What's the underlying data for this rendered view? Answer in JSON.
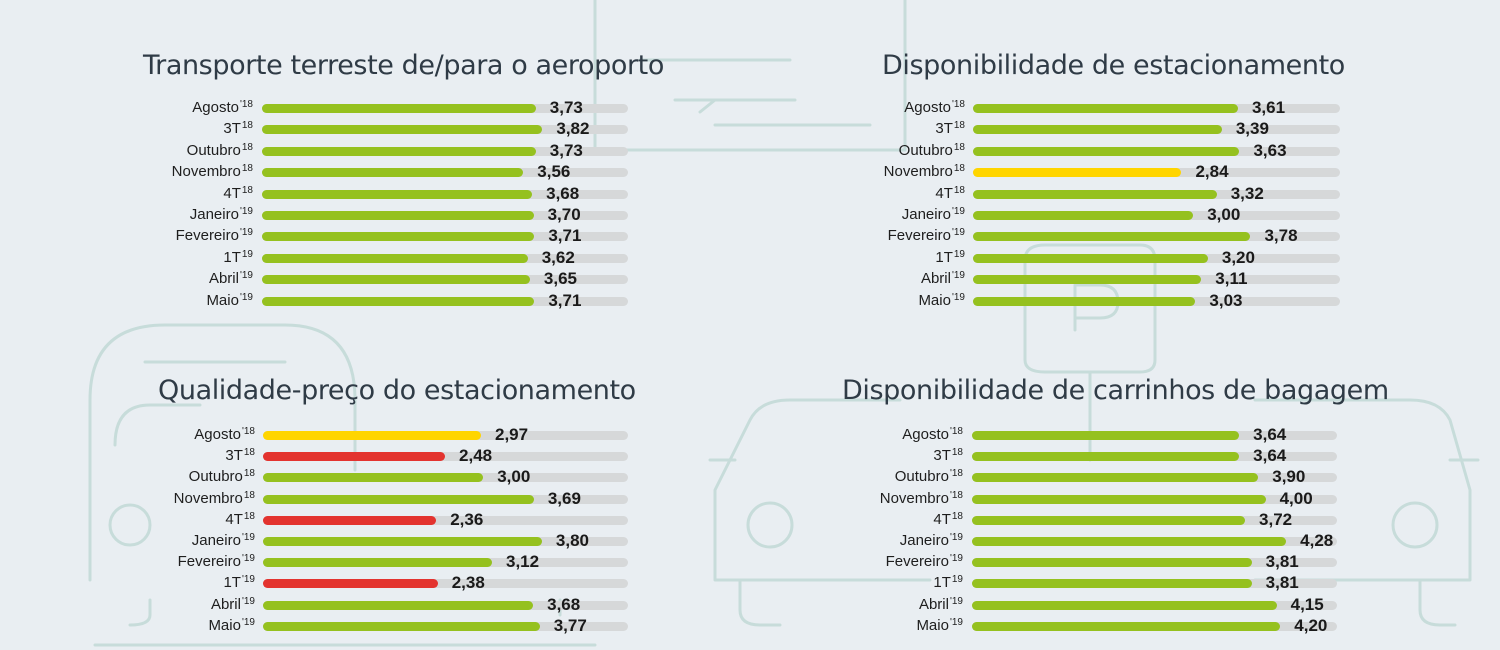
{
  "colors": {
    "good": "#95c11f",
    "warning": "#ffd500",
    "bad": "#e3332f",
    "track": "#d6d8d9",
    "background": "#e9eef2"
  },
  "chart_data": [
    {
      "type": "bar",
      "orientation": "horizontal",
      "title": "Transporte terreste de/para o aeroporto",
      "xlim": [
        0,
        5
      ],
      "categories": [
        {
          "name": "Agosto",
          "sup": "'18"
        },
        {
          "name": "3T",
          "sup": "18"
        },
        {
          "name": "Outubro",
          "sup": "18"
        },
        {
          "name": "Novembro",
          "sup": "18"
        },
        {
          "name": "4T",
          "sup": "18"
        },
        {
          "name": "Janeiro",
          "sup": "'19"
        },
        {
          "name": "Fevereiro",
          "sup": "'19"
        },
        {
          "name": "1T",
          "sup": "19"
        },
        {
          "name": "Abril",
          "sup": "'19"
        },
        {
          "name": "Maio",
          "sup": "'19"
        }
      ],
      "values": [
        3.73,
        3.82,
        3.73,
        3.56,
        3.68,
        3.7,
        3.71,
        3.62,
        3.65,
        3.71
      ],
      "labels": [
        "3,73",
        "3,82",
        "3,73",
        "3,56",
        "3,68",
        "3,70",
        "3,71",
        "3,62",
        "3,65",
        "3,71"
      ],
      "status": [
        "good",
        "good",
        "good",
        "good",
        "good",
        "good",
        "good",
        "good",
        "good",
        "good"
      ]
    },
    {
      "type": "bar",
      "orientation": "horizontal",
      "title": "Disponibilidade de estacionamento",
      "xlim": [
        0,
        5
      ],
      "categories": [
        {
          "name": "Agosto",
          "sup": "'18"
        },
        {
          "name": "3T",
          "sup": "18"
        },
        {
          "name": "Outubro",
          "sup": "18"
        },
        {
          "name": "Novembro",
          "sup": "18"
        },
        {
          "name": "4T",
          "sup": "18"
        },
        {
          "name": "Janeiro",
          "sup": "'19"
        },
        {
          "name": "Fevereiro",
          "sup": "'19"
        },
        {
          "name": "1T",
          "sup": "19"
        },
        {
          "name": "Abril",
          "sup": "'19"
        },
        {
          "name": "Maio",
          "sup": "'19"
        }
      ],
      "values": [
        3.61,
        3.39,
        3.63,
        2.84,
        3.32,
        3.0,
        3.78,
        3.2,
        3.11,
        3.03
      ],
      "labels": [
        "3,61",
        "3,39",
        "3,63",
        "2,84",
        "3,32",
        "3,00",
        "3,78",
        "3,20",
        "3,11",
        "3,03"
      ],
      "status": [
        "good",
        "good",
        "good",
        "warning",
        "good",
        "good",
        "good",
        "good",
        "good",
        "good"
      ]
    },
    {
      "type": "bar",
      "orientation": "horizontal",
      "title": "Qualidade-preço do estacionamento",
      "xlim": [
        0,
        5
      ],
      "categories": [
        {
          "name": "Agosto",
          "sup": "'18"
        },
        {
          "name": "3T",
          "sup": "18"
        },
        {
          "name": "Outubro",
          "sup": "18"
        },
        {
          "name": "Novembro",
          "sup": "18"
        },
        {
          "name": "4T",
          "sup": "18"
        },
        {
          "name": "Janeiro",
          "sup": "'19"
        },
        {
          "name": "Fevereiro",
          "sup": "'19"
        },
        {
          "name": "1T",
          "sup": "'19"
        },
        {
          "name": "Abril",
          "sup": "'19"
        },
        {
          "name": "Maio",
          "sup": "'19"
        }
      ],
      "values": [
        2.97,
        2.48,
        3.0,
        3.69,
        2.36,
        3.8,
        3.12,
        2.38,
        3.68,
        3.77
      ],
      "labels": [
        "2,97",
        "2,48",
        "3,00",
        "3,69",
        "2,36",
        "3,80",
        "3,12",
        "2,38",
        "3,68",
        "3,77"
      ],
      "status": [
        "warning",
        "bad",
        "good",
        "good",
        "bad",
        "good",
        "good",
        "bad",
        "good",
        "good"
      ]
    },
    {
      "type": "bar",
      "orientation": "horizontal",
      "title": "Disponibilidade de carrinhos de bagagem",
      "xlim": [
        0,
        5
      ],
      "categories": [
        {
          "name": "Agosto",
          "sup": "'18"
        },
        {
          "name": "3T",
          "sup": "18"
        },
        {
          "name": "Outubro",
          "sup": "'18"
        },
        {
          "name": "Novembro",
          "sup": "'18"
        },
        {
          "name": "4T",
          "sup": "18"
        },
        {
          "name": "Janeiro",
          "sup": "'19"
        },
        {
          "name": "Fevereiro",
          "sup": "'19"
        },
        {
          "name": "1T",
          "sup": "19"
        },
        {
          "name": "Abril",
          "sup": "'19"
        },
        {
          "name": "Maio",
          "sup": "'19"
        }
      ],
      "values": [
        3.64,
        3.64,
        3.9,
        4.0,
        3.72,
        4.28,
        3.81,
        3.81,
        4.15,
        4.2
      ],
      "labels": [
        "3,64",
        "3,64",
        "3,90",
        "4,00",
        "3,72",
        "4,28",
        "3,81",
        "3,81",
        "4,15",
        "4,20"
      ],
      "status": [
        "good",
        "good",
        "good",
        "good",
        "good",
        "good",
        "good",
        "good",
        "good",
        "good"
      ]
    }
  ]
}
